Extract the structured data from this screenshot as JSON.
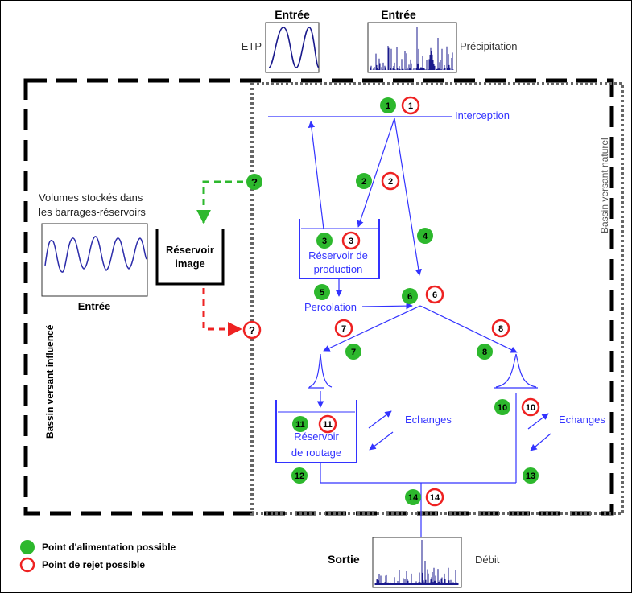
{
  "inputs": {
    "etp_header": "Entrée",
    "etp_label": "ETP",
    "precip_header": "Entrée",
    "precip_label": "Précipitation",
    "volumes_line1": "Volumes stockés dans",
    "volumes_line2": "les barrages-réservoirs",
    "volumes_caption": "Entrée"
  },
  "basins": {
    "influenced": "Bassin versant influencé",
    "natural": "Bassin versant naturel"
  },
  "model": {
    "interception": "Interception",
    "production_line1": "Réservoir de",
    "production_line2": "production",
    "percolation": "Percolation",
    "routing_line1": "Réservoir",
    "routing_line2": "de routage",
    "exchanges_left": "Echanges",
    "exchanges_right": "Echanges",
    "image_line1": "Réservoir",
    "image_line2": "image"
  },
  "points": {
    "feed": [
      "1",
      "2",
      "3",
      "4",
      "5",
      "6",
      "7",
      "8",
      "10",
      "11",
      "12",
      "13",
      "14"
    ],
    "reject": [
      "1",
      "2",
      "3",
      "6",
      "7",
      "8",
      "10",
      "11",
      "14"
    ],
    "unknown": "?"
  },
  "output": {
    "sortie": "Sortie",
    "debit": "Débit"
  },
  "legend": {
    "feed_label": "Point d'alimentation possible",
    "reject_label": "Point de rejet possible"
  },
  "colors": {
    "blue": "#3333ff",
    "green": "#2db82d",
    "red": "#ee2222",
    "dark_blue": "#1a1a8c"
  }
}
